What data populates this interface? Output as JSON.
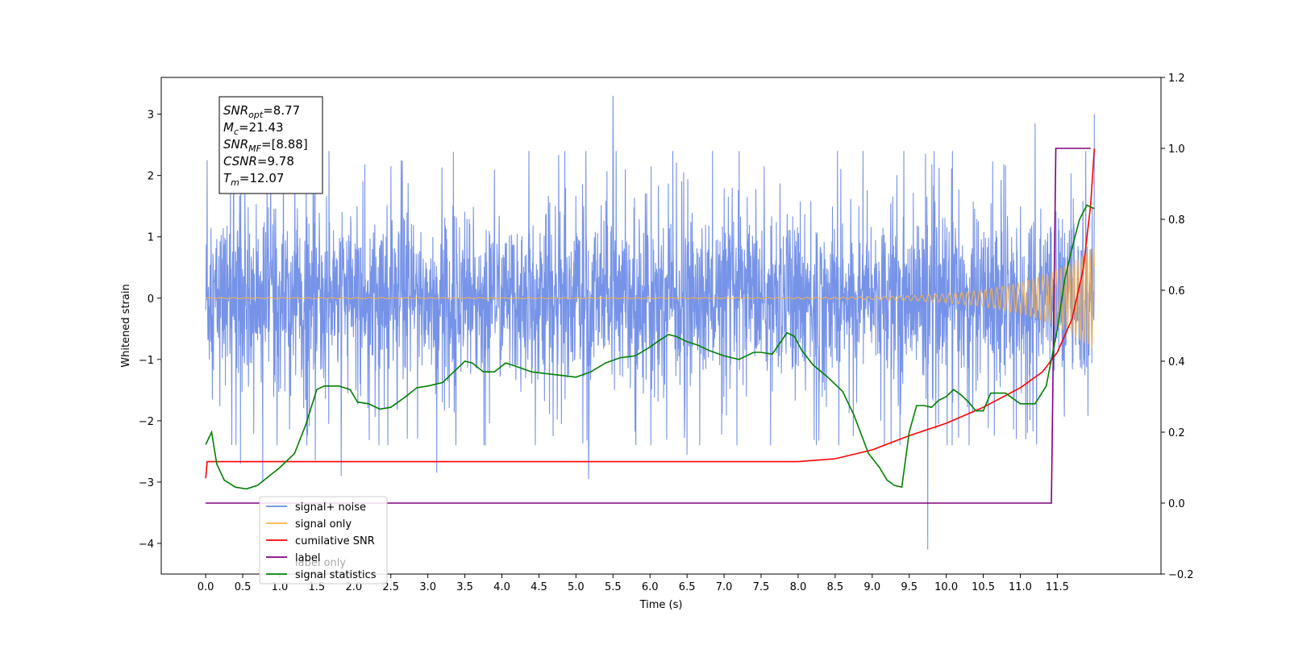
{
  "chart_data": {
    "type": "line",
    "xlabel": "Time (s)",
    "ylabel": "Whitened strain",
    "xlim": [
      -0.6,
      12.9
    ],
    "ylim": [
      -4.5,
      3.6
    ],
    "y2lim": [
      -0.2,
      1.2
    ],
    "x_ticks": [
      "0.0",
      "0.5",
      "1.0",
      "1.5",
      "2.0",
      "2.5",
      "3.0",
      "3.5",
      "4.0",
      "4.5",
      "5.0",
      "5.5",
      "6.0",
      "6.5",
      "7.0",
      "7.5",
      "8.0",
      "8.5",
      "9.0",
      "9.5",
      "10.0",
      "10.5",
      "11.0",
      "11.5"
    ],
    "y_ticks": [
      "3",
      "2",
      "1",
      "0",
      "−1",
      "−2",
      "−3",
      "−4"
    ],
    "y2_ticks": [
      "1.2",
      "1.0",
      "0.8",
      "0.6",
      "0.4",
      "0.2",
      "0.0",
      "−0.2"
    ],
    "annotation": [
      {
        "base": "SNR",
        "sub": "opt",
        "value": "=8.77"
      },
      {
        "base": "M",
        "sub": "c",
        "value": "=21.43"
      },
      {
        "base": "SNR",
        "sub": "MF",
        "value": "=[8.88]"
      },
      {
        "base": "CSNR",
        "sub": "",
        "value": "=9.78"
      },
      {
        "base": "T",
        "sub": "m",
        "value": "=12.07"
      }
    ],
    "legend": {
      "location": "lower-left",
      "entries": [
        {
          "label": "signal+ noise",
          "color": "#6a8ae6"
        },
        {
          "label": "signal only",
          "color": "#ffb347"
        },
        {
          "label": "cumilative SNR",
          "color": "#ff0000"
        },
        {
          "label": "label",
          "color": "#800080"
        },
        {
          "label": "signal statistics",
          "color": "#008000"
        }
      ],
      "hidden_label": "label only"
    },
    "series": [
      {
        "name": "signal+ noise",
        "axis": "left",
        "color": "#6a8ae6",
        "style": "noise",
        "x_range": [
          0.0,
          12.0
        ],
        "baseline": 0.0,
        "amplitude": 1.05,
        "spikes": [
          {
            "x": 0.02,
            "y": 2.25
          },
          {
            "x": 0.47,
            "y": -2.7
          },
          {
            "x": 0.77,
            "y": -3.0
          },
          {
            "x": 1.48,
            "y": -2.65
          },
          {
            "x": 1.83,
            "y": 2.85
          },
          {
            "x": 1.83,
            "y": -2.9
          },
          {
            "x": 3.12,
            "y": -2.85
          },
          {
            "x": 5.17,
            "y": -2.95
          },
          {
            "x": 5.5,
            "y": 3.3
          },
          {
            "x": 6.5,
            "y": -2.55
          },
          {
            "x": 9.75,
            "y": -4.1
          },
          {
            "x": 11.2,
            "y": 2.85
          },
          {
            "x": 12.0,
            "y": 3.0
          }
        ]
      },
      {
        "name": "signal only",
        "axis": "left",
        "color": "#ffb347",
        "style": "chirp",
        "x_range": [
          0.0,
          12.0
        ],
        "baseline": 0.0,
        "amplitude_end": 0.85
      },
      {
        "name": "cumilative SNR",
        "axis": "right",
        "color": "#ff0000",
        "x": [
          0.0,
          0.02,
          8.0,
          8.5,
          9.0,
          9.5,
          10.0,
          10.5,
          11.0,
          11.3,
          11.5,
          11.7,
          11.85,
          11.95,
          12.0
        ],
        "y": [
          0.07,
          0.117,
          0.117,
          0.125,
          0.15,
          0.19,
          0.225,
          0.27,
          0.325,
          0.37,
          0.425,
          0.52,
          0.66,
          0.84,
          1.0
        ]
      },
      {
        "name": "label",
        "axis": "right",
        "color": "#800080",
        "x": [
          0.0,
          11.42,
          11.48,
          11.95
        ],
        "y": [
          0.0,
          0.0,
          1.0,
          1.0
        ]
      },
      {
        "name": "signal statistics",
        "axis": "right",
        "color": "#008000",
        "x": [
          0.0,
          0.08,
          0.15,
          0.25,
          0.4,
          0.55,
          0.7,
          0.85,
          1.0,
          1.2,
          1.35,
          1.5,
          1.6,
          1.7,
          1.8,
          1.95,
          2.05,
          2.2,
          2.35,
          2.5,
          2.7,
          2.85,
          3.0,
          3.2,
          3.4,
          3.5,
          3.6,
          3.75,
          3.9,
          4.05,
          4.2,
          4.4,
          4.6,
          4.8,
          5.0,
          5.2,
          5.4,
          5.6,
          5.8,
          6.0,
          6.1,
          6.25,
          6.35,
          6.5,
          6.65,
          6.8,
          7.0,
          7.2,
          7.4,
          7.5,
          7.65,
          7.75,
          7.85,
          7.95,
          8.05,
          8.2,
          8.4,
          8.6,
          8.75,
          8.85,
          8.95,
          9.1,
          9.2,
          9.3,
          9.4,
          9.5,
          9.6,
          9.7,
          9.8,
          9.9,
          10.0,
          10.1,
          10.2,
          10.3,
          10.4,
          10.5,
          10.6,
          10.8,
          11.0,
          11.2,
          11.35,
          11.5,
          11.6,
          11.7,
          11.8,
          11.9,
          12.0
        ],
        "y": [
          0.165,
          0.2,
          0.11,
          0.065,
          0.045,
          0.04,
          0.05,
          0.075,
          0.1,
          0.14,
          0.22,
          0.32,
          0.33,
          0.33,
          0.33,
          0.32,
          0.285,
          0.28,
          0.265,
          0.27,
          0.3,
          0.325,
          0.33,
          0.34,
          0.38,
          0.4,
          0.395,
          0.37,
          0.37,
          0.395,
          0.385,
          0.37,
          0.365,
          0.36,
          0.355,
          0.37,
          0.395,
          0.41,
          0.415,
          0.44,
          0.455,
          0.475,
          0.47,
          0.455,
          0.445,
          0.43,
          0.415,
          0.405,
          0.425,
          0.425,
          0.42,
          0.45,
          0.48,
          0.47,
          0.43,
          0.39,
          0.355,
          0.315,
          0.25,
          0.195,
          0.14,
          0.1,
          0.065,
          0.05,
          0.045,
          0.2,
          0.275,
          0.275,
          0.27,
          0.29,
          0.3,
          0.32,
          0.305,
          0.285,
          0.26,
          0.26,
          0.31,
          0.31,
          0.28,
          0.28,
          0.33,
          0.49,
          0.63,
          0.72,
          0.8,
          0.84,
          0.83
        ]
      }
    ]
  }
}
